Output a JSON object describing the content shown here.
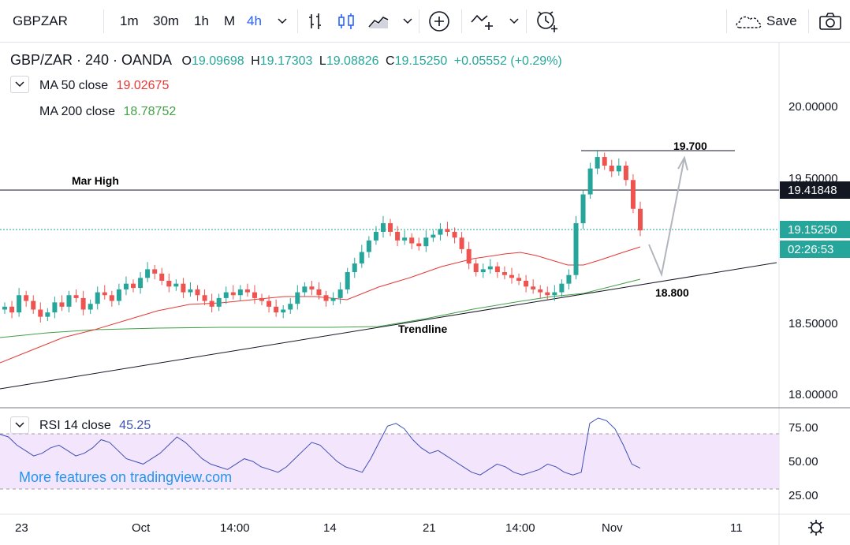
{
  "toolbar": {
    "symbol": "GBPZAR",
    "intervals": [
      "1m",
      "30m",
      "1h",
      "M",
      "4h"
    ],
    "active_interval": "4h",
    "save_label": "Save"
  },
  "legend": {
    "title": "GBP/ZAR · 240 · OANDA",
    "o_label": "O",
    "o_value": "19.09698",
    "h_label": "H",
    "h_value": "19.17303",
    "l_label": "L",
    "l_value": "19.08826",
    "c_label": "C",
    "c_value": "19.15250",
    "change": "+0.05552 (+0.29%)",
    "ma50_label": "MA 50 close",
    "ma50_value": "19.02675",
    "ma200_label": "MA 200 close",
    "ma200_value": "18.78752",
    "rsi_label": "RSI 14 close",
    "rsi_value": "45.25"
  },
  "price_axis": [
    "20.00000",
    "19.50000",
    "18.50000",
    "18.00000"
  ],
  "price_tags": {
    "mar_high": "19.41848",
    "last": "19.15250",
    "countdown": "02:26:53"
  },
  "rsi_axis": [
    "75.00",
    "50.00",
    "25.00"
  ],
  "time_axis": [
    "23",
    "Oct",
    "14:00",
    "14",
    "21",
    "14:00",
    "Nov",
    "11"
  ],
  "annotations": {
    "mar_high": "Mar High",
    "target": "19.700",
    "support": "18.800",
    "trendline": "Trendline"
  },
  "watermark": "More features on tradingview.com",
  "colors": {
    "up": "#26a69a",
    "down": "#ef5350",
    "ma50": "#e53935",
    "ma200": "#43a047",
    "rsi": "#3f51b5",
    "rsi_band": "#f3e5fc",
    "accent": "#2962ff"
  },
  "icons": [
    "chevron-down-icon",
    "bar-chart-icon",
    "candles-icon",
    "area-chart-icon",
    "add-indicator-icon",
    "compare-icon",
    "alert-icon",
    "cloud-save-icon",
    "camera-icon",
    "settings-icon"
  ],
  "chart_data": {
    "type": "candlestick",
    "series": [
      {
        "name": "GBP/ZAR",
        "values": [
          18.62,
          18.58,
          18.7,
          18.66,
          18.6,
          18.55,
          18.58,
          18.65,
          18.62,
          18.7,
          18.68,
          18.6,
          18.64,
          18.72,
          18.7,
          18.66,
          18.74,
          18.78,
          18.75,
          18.82,
          18.88,
          18.85,
          18.8,
          18.76,
          18.78,
          18.72,
          18.74,
          18.7,
          18.66,
          18.62,
          18.68,
          18.72,
          18.7,
          18.74,
          18.72,
          18.68,
          18.66,
          18.62,
          18.58,
          18.6,
          18.64,
          18.72,
          18.76,
          18.74,
          18.7,
          18.66,
          18.68,
          18.74,
          18.86,
          18.92,
          19.0,
          19.08,
          19.14,
          19.2,
          19.14,
          19.08,
          19.1,
          19.06,
          19.04,
          19.1,
          19.12,
          19.16,
          19.14,
          19.1,
          19.02,
          18.92,
          18.86,
          18.88,
          18.9,
          18.86,
          18.84,
          18.82,
          18.8,
          18.76,
          18.74,
          18.72,
          18.7,
          18.72,
          18.78,
          18.84,
          19.2,
          19.4,
          19.58,
          19.66,
          19.6,
          19.56,
          19.6,
          19.5,
          19.3,
          19.15
        ]
      },
      {
        "name": "MA 50 close",
        "values": [
          18.42,
          18.46,
          18.5,
          18.54,
          18.58,
          18.6,
          18.62,
          18.64,
          18.65,
          18.66,
          18.66,
          18.66,
          18.67,
          18.68,
          18.7,
          18.74,
          18.8,
          18.86,
          18.9,
          18.94,
          18.96,
          18.98,
          18.98,
          18.96,
          18.94,
          18.92,
          18.96,
          19.03
        ]
      },
      {
        "name": "MA 200 close",
        "values": [
          18.58,
          18.6,
          18.61,
          18.61,
          18.61,
          18.61,
          18.62,
          18.62,
          18.62,
          18.63,
          18.64,
          18.66,
          18.68,
          18.7,
          18.73,
          18.76,
          18.79
        ]
      }
    ],
    "ylim": [
      17.95,
      20.3
    ],
    "annotations": [
      "Mar High",
      "19.700",
      "18.800",
      "Trendline"
    ],
    "rsi": {
      "name": "RSI 14 close",
      "ylim": [
        20,
        90
      ],
      "band": [
        30,
        70
      ],
      "values": [
        70,
        68,
        62,
        58,
        54,
        56,
        60,
        62,
        58,
        54,
        56,
        60,
        66,
        64,
        58,
        52,
        50,
        48,
        52,
        56,
        62,
        68,
        64,
        58,
        52,
        48,
        46,
        44,
        48,
        52,
        50,
        46,
        44,
        42,
        46,
        52,
        58,
        64,
        62,
        56,
        50,
        46,
        44,
        42,
        52,
        64,
        76,
        78,
        74,
        66,
        60,
        56,
        58,
        54,
        50,
        46,
        42,
        40,
        44,
        48,
        46,
        42,
        40,
        42,
        44,
        48,
        46,
        42,
        40,
        42,
        78,
        82,
        80,
        74,
        62,
        48,
        45
      ]
    }
  }
}
